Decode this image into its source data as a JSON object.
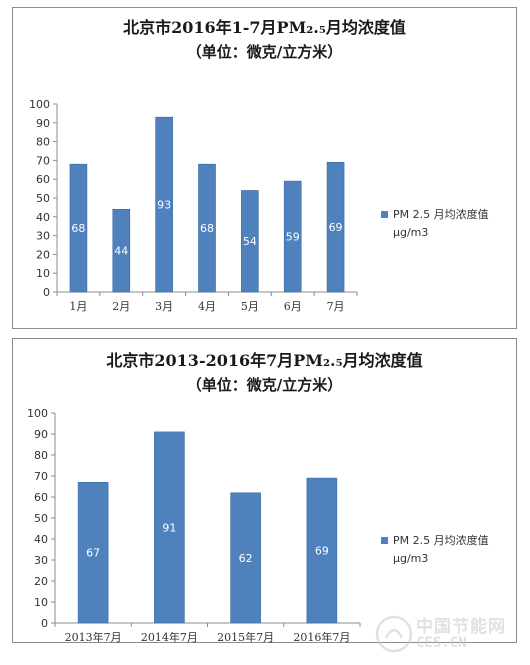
{
  "chart_data": [
    {
      "type": "bar",
      "title": "北京市2016年1-7月PM₂.₅月均浓度值",
      "subtitle": "（单位：微克/立方米）",
      "categories": [
        "1月",
        "2月",
        "3月",
        "4月",
        "5月",
        "6月",
        "7月"
      ],
      "series": [
        {
          "name": "PM 2.5 月均浓度值",
          "unit": "μg/m3",
          "values": [
            68,
            44,
            93,
            68,
            54,
            59,
            69
          ]
        }
      ],
      "ylim": [
        0,
        100
      ],
      "yticks": [
        0,
        10,
        20,
        30,
        40,
        50,
        60,
        70,
        80,
        90,
        100
      ],
      "legend_position": "right",
      "grid": false,
      "bar_color": "#4f81bd"
    },
    {
      "type": "bar",
      "title": "北京市2013-2016年7月PM₂.₅月均浓度值",
      "subtitle": "（单位：微克/立方米）",
      "categories": [
        "2013年7月",
        "2014年7月",
        "2015年7月",
        "2016年7月"
      ],
      "series": [
        {
          "name": "PM 2.5 月均浓度值",
          "unit": "μg/m3",
          "values": [
            67,
            91,
            62,
            69
          ]
        }
      ],
      "ylim": [
        0,
        100
      ],
      "yticks": [
        0,
        10,
        20,
        30,
        40,
        50,
        60,
        70,
        80,
        90,
        100
      ],
      "legend_position": "right",
      "grid": false,
      "bar_color": "#4f81bd"
    }
  ],
  "watermark": {
    "cn": "中国节能网",
    "en": "CES.CN"
  }
}
